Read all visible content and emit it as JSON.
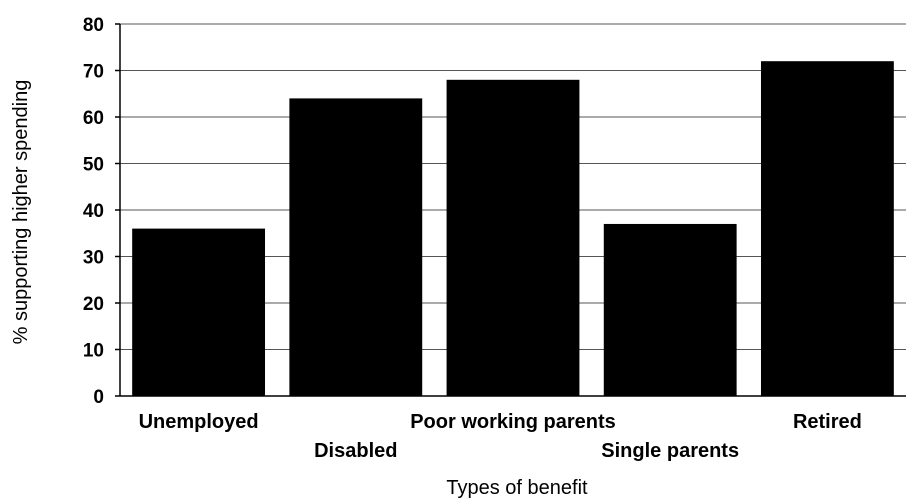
{
  "chart_data": {
    "type": "bar",
    "categories": [
      "Unemployed",
      "Disabled",
      "Poor working parents",
      "Single parents",
      "Retired"
    ],
    "values": [
      36,
      64,
      68,
      37,
      72
    ],
    "xlabel": "Types of benefit",
    "ylabel": "% supporting higher spending",
    "ylim": [
      0,
      80
    ],
    "yticks": [
      0,
      10,
      20,
      30,
      40,
      50,
      60,
      70,
      80
    ],
    "grid": true,
    "legend": "none",
    "bar_color": "#000000",
    "grid_color": "#555555"
  }
}
